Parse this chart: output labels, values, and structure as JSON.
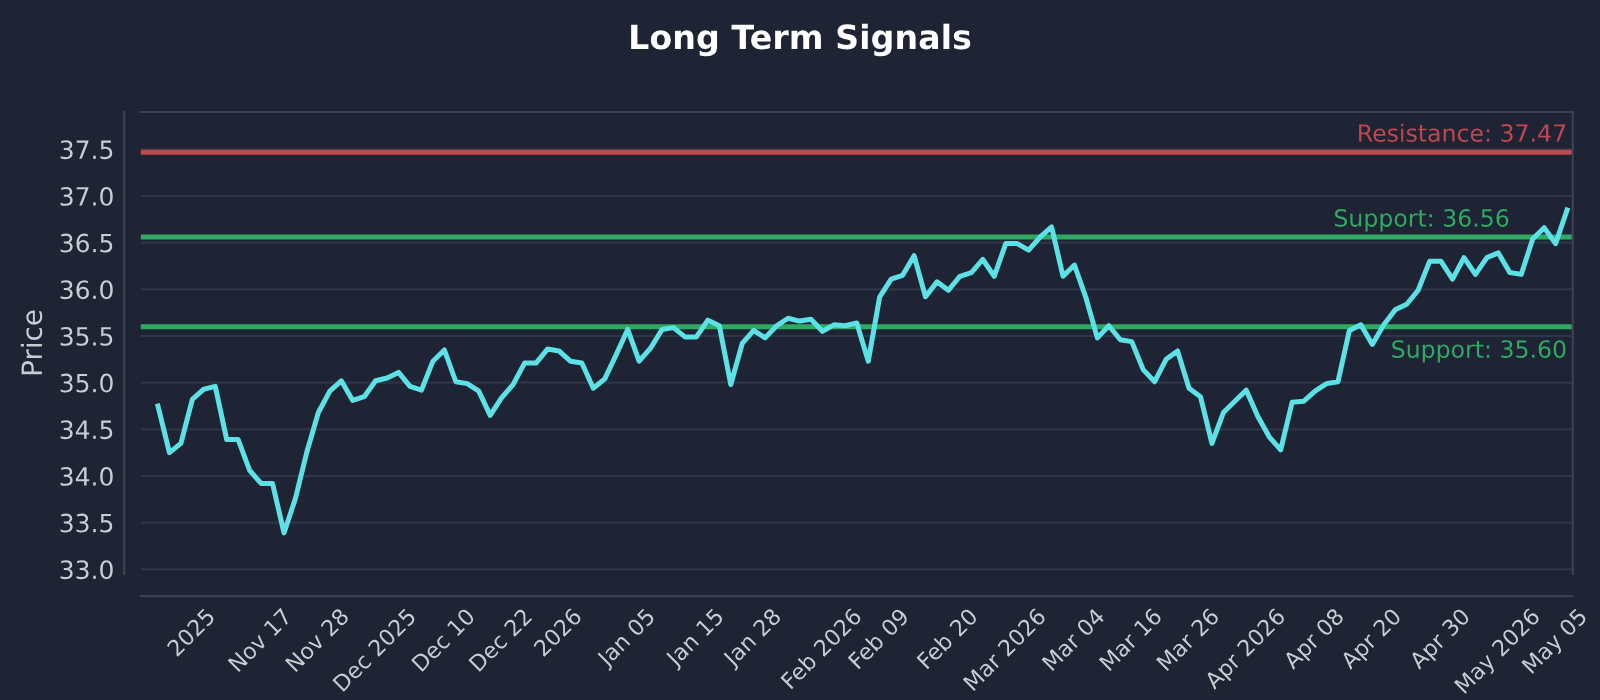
{
  "chart_data": {
    "type": "line",
    "title": "Long Term Signals",
    "ylabel": "Price",
    "categories": [
      null,
      null,
      null,
      "2025",
      null,
      null,
      null,
      null,
      null,
      "Nov 17",
      null,
      null,
      null,
      null,
      "Nov 28",
      null,
      null,
      null,
      null,
      "Dec 2025",
      null,
      null,
      null,
      null,
      null,
      "Dec 10",
      null,
      null,
      null,
      null,
      "Dec 22",
      null,
      null,
      null,
      null,
      "2026",
      null,
      null,
      null,
      null,
      null,
      "Jan 05",
      null,
      null,
      null,
      null,
      null,
      "Jan 15",
      null,
      null,
      null,
      null,
      "Jan 28",
      null,
      null,
      null,
      null,
      null,
      "Feb 2026",
      null,
      null,
      null,
      null,
      "Feb 09",
      null,
      null,
      null,
      null,
      null,
      "Feb 20",
      null,
      null,
      null,
      null,
      "Mar 2026",
      null,
      null,
      null,
      null,
      null,
      "Mar 04",
      null,
      null,
      null,
      null,
      "Mar 16",
      null,
      null,
      null,
      null,
      "Mar 26",
      null,
      null,
      null,
      null,
      "Apr 2026",
      null,
      null,
      null,
      null,
      null,
      "Apr 08",
      null,
      null,
      null,
      null,
      "Apr 20",
      null,
      null,
      null,
      null,
      null,
      "Apr 30",
      null,
      null,
      null,
      null,
      "May 2026",
      null,
      null,
      null,
      null,
      "May 05",
      null
    ],
    "series": [
      {
        "color": "#5ce1e6",
        "values": [
          34.75,
          34.25,
          34.35,
          34.82,
          34.93,
          34.96,
          34.39,
          34.39,
          34.06,
          33.92,
          33.92,
          33.39,
          33.76,
          34.26,
          34.68,
          34.91,
          35.02,
          34.81,
          34.85,
          35.02,
          35.05,
          35.11,
          34.96,
          34.92,
          35.23,
          35.35,
          35.01,
          34.99,
          34.91,
          34.65,
          34.84,
          34.98,
          35.21,
          35.21,
          35.36,
          35.34,
          35.23,
          35.21,
          34.94,
          35.04,
          35.3,
          35.57,
          35.23,
          35.37,
          35.57,
          35.59,
          35.49,
          35.49,
          35.67,
          35.61,
          34.98,
          35.42,
          35.56,
          35.48,
          35.61,
          35.69,
          35.66,
          35.68,
          35.55,
          35.62,
          35.61,
          35.64,
          35.23,
          35.92,
          36.11,
          36.15,
          36.36,
          35.92,
          36.08,
          35.99,
          36.14,
          36.18,
          36.32,
          36.14,
          36.49,
          36.49,
          36.42,
          36.56,
          36.67,
          36.14,
          36.26,
          35.91,
          35.48,
          35.61,
          35.46,
          35.44,
          35.14,
          35.01,
          35.25,
          35.34,
          34.94,
          34.85,
          34.35,
          34.68,
          34.8,
          34.92,
          34.64,
          34.42,
          34.28,
          34.79,
          34.8,
          34.91,
          34.99,
          35.01,
          35.56,
          35.62,
          35.41,
          35.62,
          35.78,
          35.84,
          35.99,
          36.3,
          36.3,
          36.11,
          36.34,
          36.16,
          36.34,
          36.39,
          36.18,
          36.16,
          36.54,
          36.66,
          36.49,
          36.85
        ]
      }
    ],
    "ylim": [
      32.95,
      37.9
    ],
    "yticks": [
      {
        "value": 33,
        "label": "33.0"
      },
      33.5,
      {
        "value": 34,
        "label": "34.0"
      },
      34.5,
      {
        "value": 35,
        "label": "35.0"
      },
      35.5,
      {
        "value": 36,
        "label": "36.0"
      },
      36.5,
      {
        "value": 37,
        "label": "37.0"
      },
      37.5
    ],
    "grid": "y",
    "ref_lines": [
      {
        "axis": "y",
        "value": 37.47,
        "label": "Resistance: 37.47",
        "color": "#c0474f"
      },
      {
        "axis": "y",
        "value": 36.56,
        "label": "Support: 36.56",
        "color": "#2eaa62"
      },
      {
        "axis": "y",
        "value": 35.6,
        "label": "Support: 35.60",
        "color": "#2eaa62"
      }
    ]
  }
}
